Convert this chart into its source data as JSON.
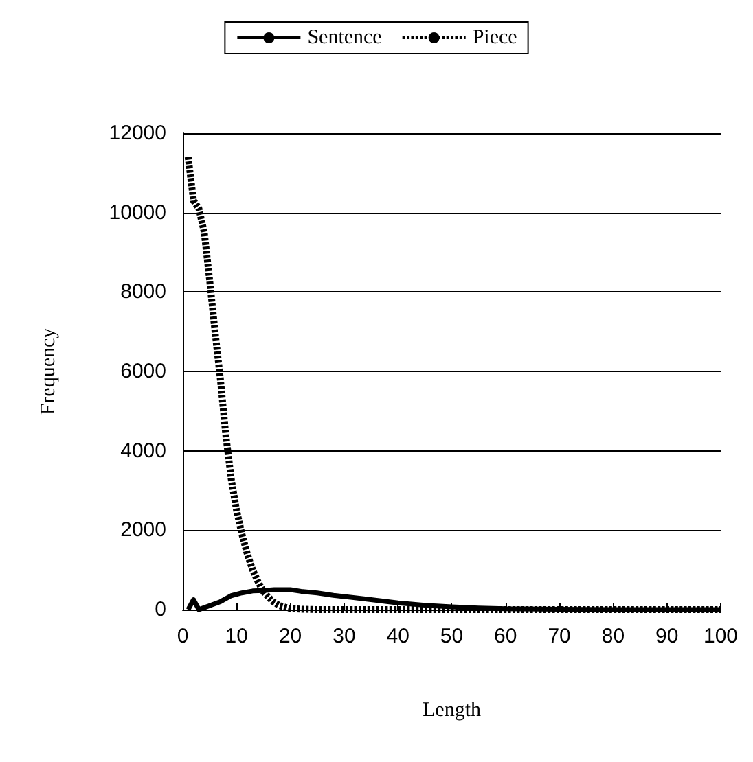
{
  "chart_data": {
    "type": "line",
    "xlabel": "Length",
    "ylabel": "Frequency",
    "xlim": [
      0,
      100
    ],
    "xticks": [
      0,
      10,
      20,
      30,
      40,
      50,
      60,
      70,
      80,
      90,
      100
    ],
    "ylim": [
      0,
      12000
    ],
    "yticks": [
      0,
      2000,
      4000,
      6000,
      8000,
      10000,
      12000
    ],
    "grid": "y",
    "legend": "top",
    "marker": "none",
    "series": [
      {
        "name": "Sentence",
        "color": "#000000",
        "line_style": "solid",
        "x": [
          1,
          2,
          3,
          4,
          5,
          7,
          9,
          11,
          13,
          15,
          17,
          20,
          22,
          25,
          28,
          30,
          35,
          40,
          45,
          50,
          55,
          60,
          70,
          80,
          100
        ],
        "values": [
          0,
          250,
          0,
          50,
          100,
          200,
          350,
          420,
          470,
          480,
          500,
          500,
          460,
          420,
          360,
          330,
          250,
          170,
          110,
          70,
          40,
          20,
          10,
          0,
          0
        ]
      },
      {
        "name": "Piece",
        "color": "#000000",
        "line_style": "dashed",
        "x": [
          1,
          2,
          3,
          4,
          5,
          6,
          7,
          8,
          9,
          10,
          11,
          12,
          13,
          14,
          15,
          16,
          17,
          18,
          19,
          20,
          22,
          25,
          30,
          40,
          100
        ],
        "values": [
          11400,
          10300,
          10100,
          9500,
          8300,
          7000,
          5800,
          4400,
          3300,
          2500,
          1900,
          1400,
          1000,
          700,
          450,
          300,
          180,
          100,
          60,
          30,
          10,
          0,
          0,
          0,
          0
        ]
      }
    ]
  }
}
